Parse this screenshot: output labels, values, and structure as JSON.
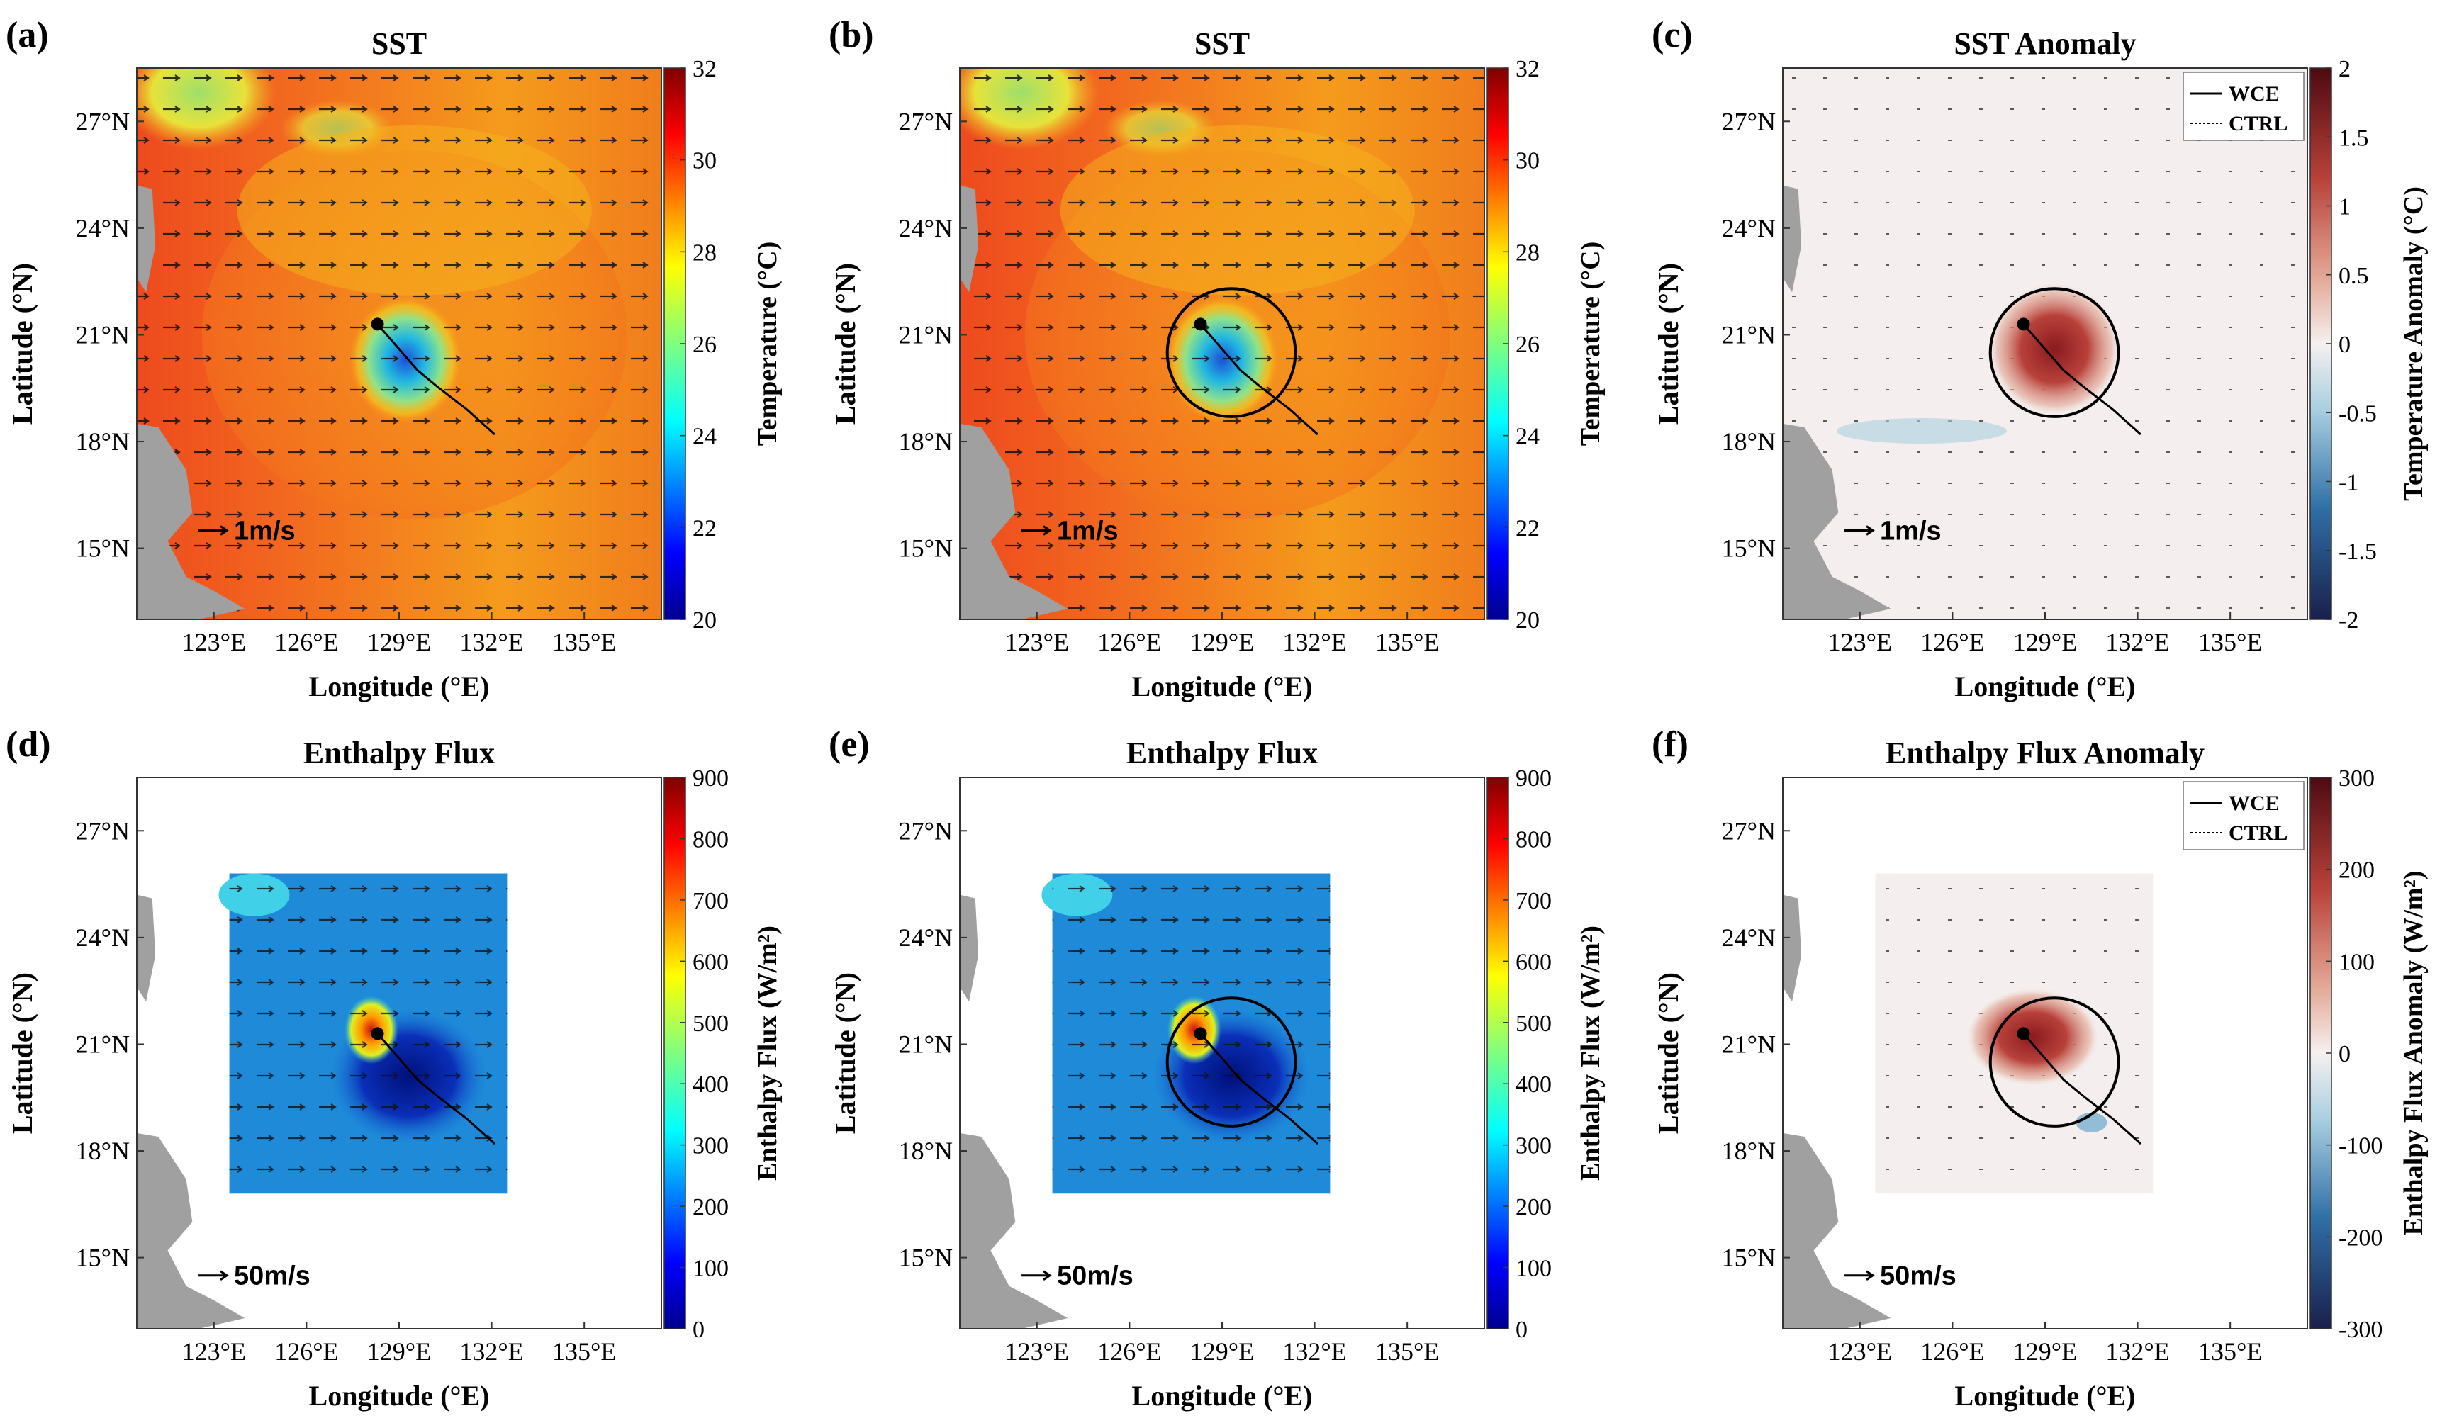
{
  "colors": {
    "sst_warm": "#f2641e",
    "sst_mid": "#f6a21c",
    "sst_cool": "#2ec4c8",
    "land": "#a0a0a0",
    "anomaly_bg": "#f4efee",
    "flux_bg": "#1e8ad8",
    "circle": "#000000"
  },
  "chart_data": [
    {
      "panel_label": "(a)",
      "type": "heatmap",
      "title": "SST",
      "xlabel": "Longitude (°E)",
      "ylabel": "Latitude (°N)",
      "xlim": [
        120.5,
        137.5
      ],
      "ylim": [
        13,
        28.5
      ],
      "xticks": [
        "123°E",
        "126°E",
        "129°E",
        "132°E",
        "135°E"
      ],
      "yticks": [
        "15°N",
        "18°N",
        "21°N",
        "24°N",
        "27°N"
      ],
      "colorbar": {
        "label": "Temperature (°C)",
        "range": [
          20,
          32
        ],
        "ticks": [
          "20",
          "22",
          "24",
          "26",
          "28",
          "30",
          "32"
        ],
        "scheme": "jet"
      },
      "field": "full",
      "cold_wake_center": [
        129.2,
        20.3
      ],
      "reference_vector": "1m/s",
      "wce_circle": false,
      "legend": null
    },
    {
      "panel_label": "(b)",
      "type": "heatmap",
      "title": "SST",
      "xlabel": "Longitude (°E)",
      "ylabel": "Latitude (°N)",
      "xlim": [
        120.5,
        137.5
      ],
      "ylim": [
        13,
        28.5
      ],
      "xticks": [
        "123°E",
        "126°E",
        "129°E",
        "132°E",
        "135°E"
      ],
      "yticks": [
        "15°N",
        "18°N",
        "21°N",
        "24°N",
        "27°N"
      ],
      "colorbar": {
        "label": "Temperature (°C)",
        "range": [
          20,
          32
        ],
        "ticks": [
          "20",
          "22",
          "24",
          "26",
          "28",
          "30",
          "32"
        ],
        "scheme": "jet"
      },
      "field": "full",
      "cold_wake_center": [
        129.0,
        20.3
      ],
      "reference_vector": "1m/s",
      "wce_circle": true,
      "legend": null
    },
    {
      "panel_label": "(c)",
      "type": "heatmap",
      "title": "SST Anomaly",
      "xlabel": "Longitude (°E)",
      "ylabel": "Latitude (°N)",
      "xlim": [
        120.5,
        137.5
      ],
      "ylim": [
        13,
        28.5
      ],
      "xticks": [
        "123°E",
        "126°E",
        "129°E",
        "132°E",
        "135°E"
      ],
      "yticks": [
        "15°N",
        "18°N",
        "21°N",
        "24°N",
        "27°N"
      ],
      "colorbar": {
        "label": "Temperature Anomaly (°C)",
        "range": [
          -2,
          2
        ],
        "ticks": [
          "-2",
          "-1.5",
          "-1",
          "-0.5",
          "0",
          "0.5",
          "1",
          "1.5",
          "2"
        ],
        "scheme": "diverging"
      },
      "field": "anomaly",
      "reference_vector": "1m/s",
      "wce_circle": true,
      "legend": [
        "WCE",
        "CTRL"
      ]
    },
    {
      "panel_label": "(d)",
      "type": "heatmap",
      "title": "Enthalpy Flux",
      "xlabel": "Longitude (°E)",
      "ylabel": "Latitude (°N)",
      "xlim": [
        120.5,
        137.5
      ],
      "ylim": [
        13,
        28.5
      ],
      "xticks": [
        "123°E",
        "126°E",
        "129°E",
        "132°E",
        "135°E"
      ],
      "yticks": [
        "15°N",
        "18°N",
        "21°N",
        "24°N",
        "27°N"
      ],
      "colorbar": {
        "label": "Enthalpy Flux (W/m²)",
        "range": [
          0,
          900
        ],
        "ticks": [
          "0",
          "100",
          "200",
          "300",
          "400",
          "500",
          "600",
          "700",
          "800",
          "900"
        ],
        "scheme": "jet"
      },
      "field": "box",
      "box_lon": [
        123.5,
        132.5
      ],
      "box_lat": [
        16.8,
        25.8
      ],
      "reference_vector": "50m/s",
      "wce_circle": false,
      "legend": null
    },
    {
      "panel_label": "(e)",
      "type": "heatmap",
      "title": "Enthalpy Flux",
      "xlabel": "Longitude (°E)",
      "ylabel": "Latitude (°N)",
      "xlim": [
        120.5,
        137.5
      ],
      "ylim": [
        13,
        28.5
      ],
      "xticks": [
        "123°E",
        "126°E",
        "129°E",
        "132°E",
        "135°E"
      ],
      "yticks": [
        "15°N",
        "18°N",
        "21°N",
        "24°N",
        "27°N"
      ],
      "colorbar": {
        "label": "Enthalpy Flux (W/m²)",
        "range": [
          0,
          900
        ],
        "ticks": [
          "0",
          "100",
          "200",
          "300",
          "400",
          "500",
          "600",
          "700",
          "800",
          "900"
        ],
        "scheme": "jet"
      },
      "field": "box",
      "box_lon": [
        123.5,
        132.5
      ],
      "box_lat": [
        16.8,
        25.8
      ],
      "reference_vector": "50m/s",
      "wce_circle": true,
      "legend": null
    },
    {
      "panel_label": "(f)",
      "type": "heatmap",
      "title": "Enthalpy Flux Anomaly",
      "xlabel": "Longitude (°E)",
      "ylabel": "Latitude (°N)",
      "xlim": [
        120.5,
        137.5
      ],
      "ylim": [
        13,
        28.5
      ],
      "xticks": [
        "123°E",
        "126°E",
        "129°E",
        "132°E",
        "135°E"
      ],
      "yticks": [
        "15°N",
        "18°N",
        "21°N",
        "24°N",
        "27°N"
      ],
      "colorbar": {
        "label": "Enthalpy Flux Anomaly (W/m²)",
        "range": [
          -300,
          300
        ],
        "ticks": [
          "-300",
          "-200",
          "-100",
          "0",
          "100",
          "200",
          "300"
        ],
        "scheme": "diverging"
      },
      "field": "box_anomaly",
      "box_lon": [
        123.5,
        132.5
      ],
      "box_lat": [
        16.8,
        25.8
      ],
      "reference_vector": "50m/s",
      "wce_circle": true,
      "legend": [
        "WCE",
        "CTRL"
      ]
    }
  ],
  "track": [
    [
      128.3,
      21.3
    ],
    [
      128.8,
      20.8
    ],
    [
      129.2,
      20.4
    ],
    [
      129.6,
      20.0
    ],
    [
      130.3,
      19.5
    ],
    [
      131.2,
      18.9
    ],
    [
      132.1,
      18.2
    ]
  ],
  "wce_circle_geo": {
    "lon": 129.3,
    "lat": 20.5,
    "radius_deg_lat": 1.8
  }
}
